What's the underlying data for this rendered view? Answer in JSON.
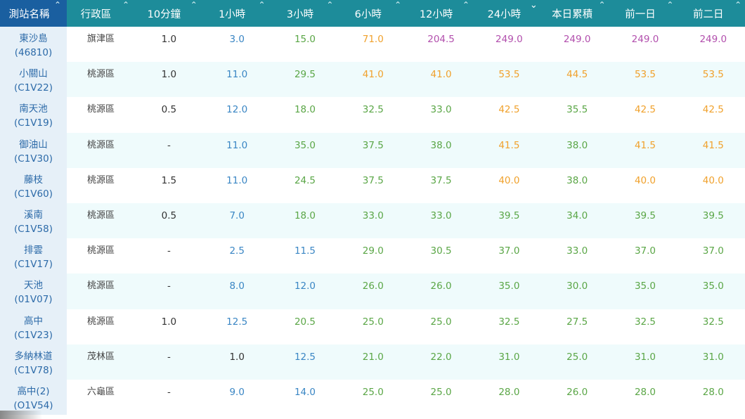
{
  "columns": [
    {
      "label": "測站名稱",
      "sort": "⇕"
    },
    {
      "label": "行政區",
      "sort": "⇕"
    },
    {
      "label": "10分鐘",
      "sort": "⇕"
    },
    {
      "label": "1小時",
      "sort": "⇕"
    },
    {
      "label": "3小時",
      "sort": "⇕"
    },
    {
      "label": "6小時",
      "sort": "⇕"
    },
    {
      "label": "12小時",
      "sort": "⇕"
    },
    {
      "label": "24小時",
      "sort": "⌄"
    },
    {
      "label": "本日累積",
      "sort": "⇕"
    },
    {
      "label": "前一日",
      "sort": "⇕"
    },
    {
      "label": "前二日",
      "sort": "⇕"
    }
  ],
  "rows": [
    {
      "name": "東沙島",
      "code": "(46810)",
      "district": "旗津區",
      "values": [
        "1.0",
        "3.0",
        "15.0",
        "71.0",
        "204.5",
        "249.0",
        "249.0",
        "249.0",
        "249.0"
      ]
    },
    {
      "name": "小關山",
      "code": "(C1V22)",
      "district": "桃源區",
      "values": [
        "1.0",
        "11.0",
        "29.5",
        "41.0",
        "41.0",
        "53.5",
        "44.5",
        "53.5",
        "53.5"
      ]
    },
    {
      "name": "南天池",
      "code": "(C1V19)",
      "district": "桃源區",
      "values": [
        "0.5",
        "12.0",
        "18.0",
        "32.5",
        "33.0",
        "42.5",
        "35.5",
        "42.5",
        "42.5"
      ]
    },
    {
      "name": "御油山",
      "code": "(C1V30)",
      "district": "桃源區",
      "values": [
        "-",
        "11.0",
        "35.0",
        "37.5",
        "38.0",
        "41.5",
        "38.0",
        "41.5",
        "41.5"
      ]
    },
    {
      "name": "藤枝",
      "code": "(C1V60)",
      "district": "桃源區",
      "values": [
        "1.5",
        "11.0",
        "24.5",
        "37.5",
        "37.5",
        "40.0",
        "38.0",
        "40.0",
        "40.0"
      ]
    },
    {
      "name": "溪南",
      "code": "(C1V58)",
      "district": "桃源區",
      "values": [
        "0.5",
        "7.0",
        "18.0",
        "33.0",
        "33.0",
        "39.5",
        "34.0",
        "39.5",
        "39.5"
      ]
    },
    {
      "name": "排雲",
      "code": "(C1V17)",
      "district": "桃源區",
      "values": [
        "-",
        "2.5",
        "11.5",
        "29.0",
        "30.5",
        "37.0",
        "33.0",
        "37.0",
        "37.0"
      ]
    },
    {
      "name": "天池",
      "code": "(01V07)",
      "district": "桃源區",
      "values": [
        "-",
        "8.0",
        "12.0",
        "26.0",
        "26.0",
        "35.0",
        "30.0",
        "35.0",
        "35.0"
      ]
    },
    {
      "name": "高中",
      "code": "(C1V23)",
      "district": "桃源區",
      "values": [
        "1.0",
        "12.5",
        "20.5",
        "25.0",
        "25.0",
        "32.5",
        "27.5",
        "32.5",
        "32.5"
      ]
    },
    {
      "name": "多納林道",
      "code": "(C1V78)",
      "district": "茂林區",
      "values": [
        "-",
        "1.0",
        "12.5",
        "21.0",
        "22.0",
        "31.0",
        "25.0",
        "31.0",
        "31.0"
      ]
    },
    {
      "name": "高中(2)",
      "code": "(O1V54)",
      "district": "六龜區",
      "values": [
        "-",
        "9.0",
        "14.0",
        "25.0",
        "25.0",
        "28.0",
        "26.0",
        "28.0",
        "28.0"
      ]
    }
  ],
  "value_colors": [
    "#333333",
    "#3a86c4",
    "#5aa646",
    "#f0a12c",
    "#b24fad"
  ]
}
